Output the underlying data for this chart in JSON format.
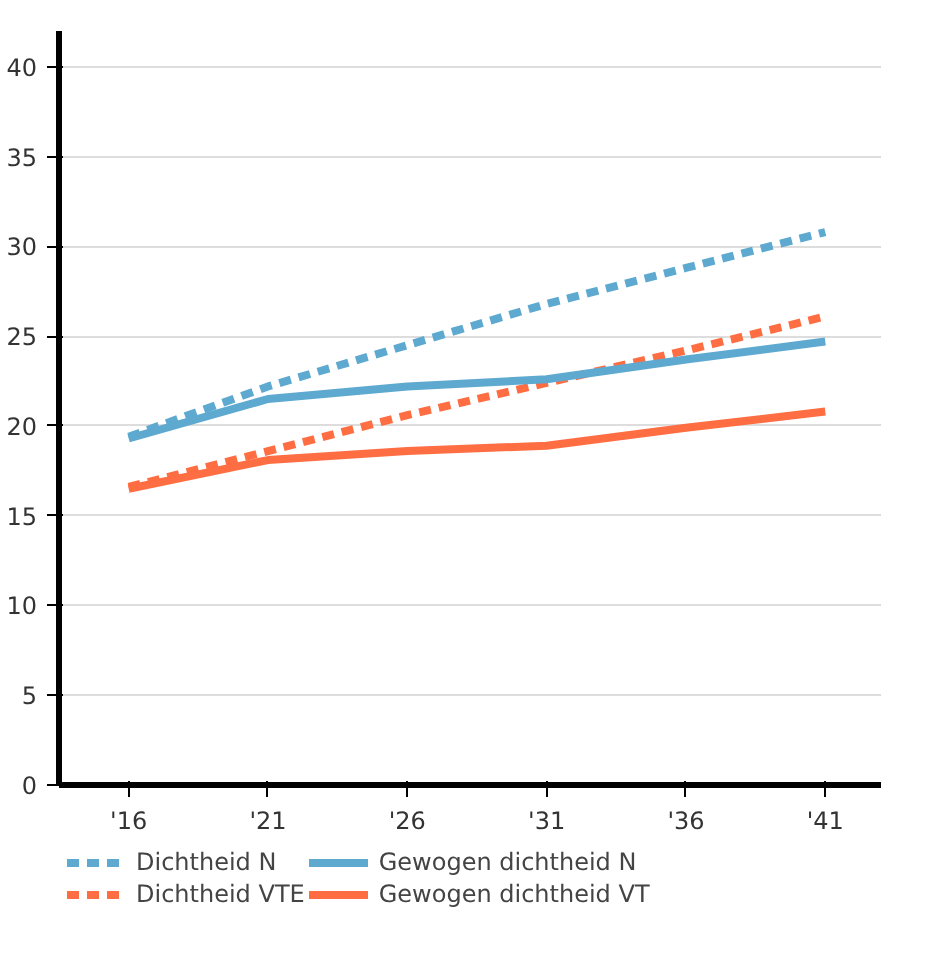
{
  "chart_data": {
    "type": "line",
    "categories": [
      "'16",
      "'21",
      "'26",
      "'31",
      "'36",
      "'41"
    ],
    "ylim": [
      0,
      42
    ],
    "yticks": [
      0,
      5,
      10,
      15,
      20,
      25,
      30,
      35,
      40
    ],
    "grid": "y",
    "legend": "bottom",
    "series": [
      {
        "name": "Dichtheid N",
        "color": "#5ea9d0",
        "line_style": "dashed",
        "values": [
          19.4,
          22.2,
          24.5,
          26.8,
          28.8,
          30.8
        ]
      },
      {
        "name": "Dichtheid VTE",
        "color": "#ff6d42",
        "line_style": "dashed",
        "values": [
          16.6,
          18.6,
          20.6,
          22.4,
          24.2,
          26.1
        ]
      },
      {
        "name": "Gewogen dichtheid N",
        "color": "#5ea9d0",
        "line_style": "solid",
        "values": [
          19.3,
          21.5,
          22.2,
          22.6,
          23.7,
          24.7
        ]
      },
      {
        "name": "Gewogen dichtheid VT",
        "color": "#ff6d42",
        "line_style": "solid",
        "values": [
          16.5,
          18.1,
          18.6,
          18.9,
          19.9,
          20.8
        ]
      }
    ]
  }
}
